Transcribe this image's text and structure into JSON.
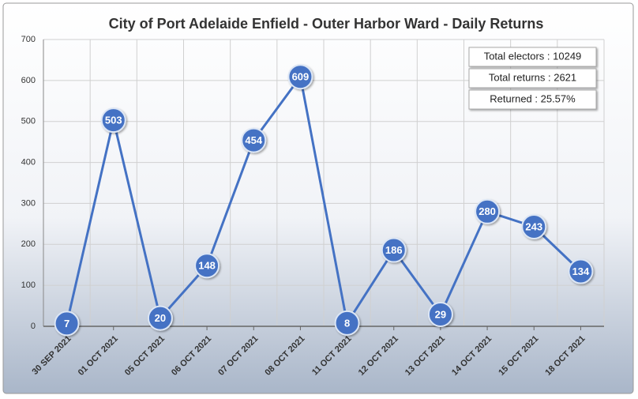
{
  "chart_data": {
    "type": "line",
    "title": "City of Port Adelaide Enfield - Outer Harbor Ward - Daily Returns",
    "categories": [
      "30 SEP 2021",
      "01 OCT 2021",
      "05 OCT 2021",
      "06 OCT 2021",
      "07 OCT 2021",
      "08 OCT 2021",
      "11 OCT 2021",
      "12 OCT 2021",
      "13 OCT 2021",
      "14 OCT 2021",
      "15 OCT 2021",
      "18 OCT 2021"
    ],
    "series": [
      {
        "name": "Daily Returns",
        "color": "#4472c4",
        "values": [
          7,
          503,
          20,
          148,
          454,
          609,
          8,
          186,
          29,
          280,
          243,
          134
        ]
      }
    ],
    "ylim": [
      0,
      700
    ],
    "yticks": [
      0,
      100,
      200,
      300,
      400,
      500,
      600,
      700
    ],
    "grid": true,
    "annotations": [
      "Total electors : 10249",
      "Total returns : 2621",
      "Returned : 25.57%"
    ]
  }
}
